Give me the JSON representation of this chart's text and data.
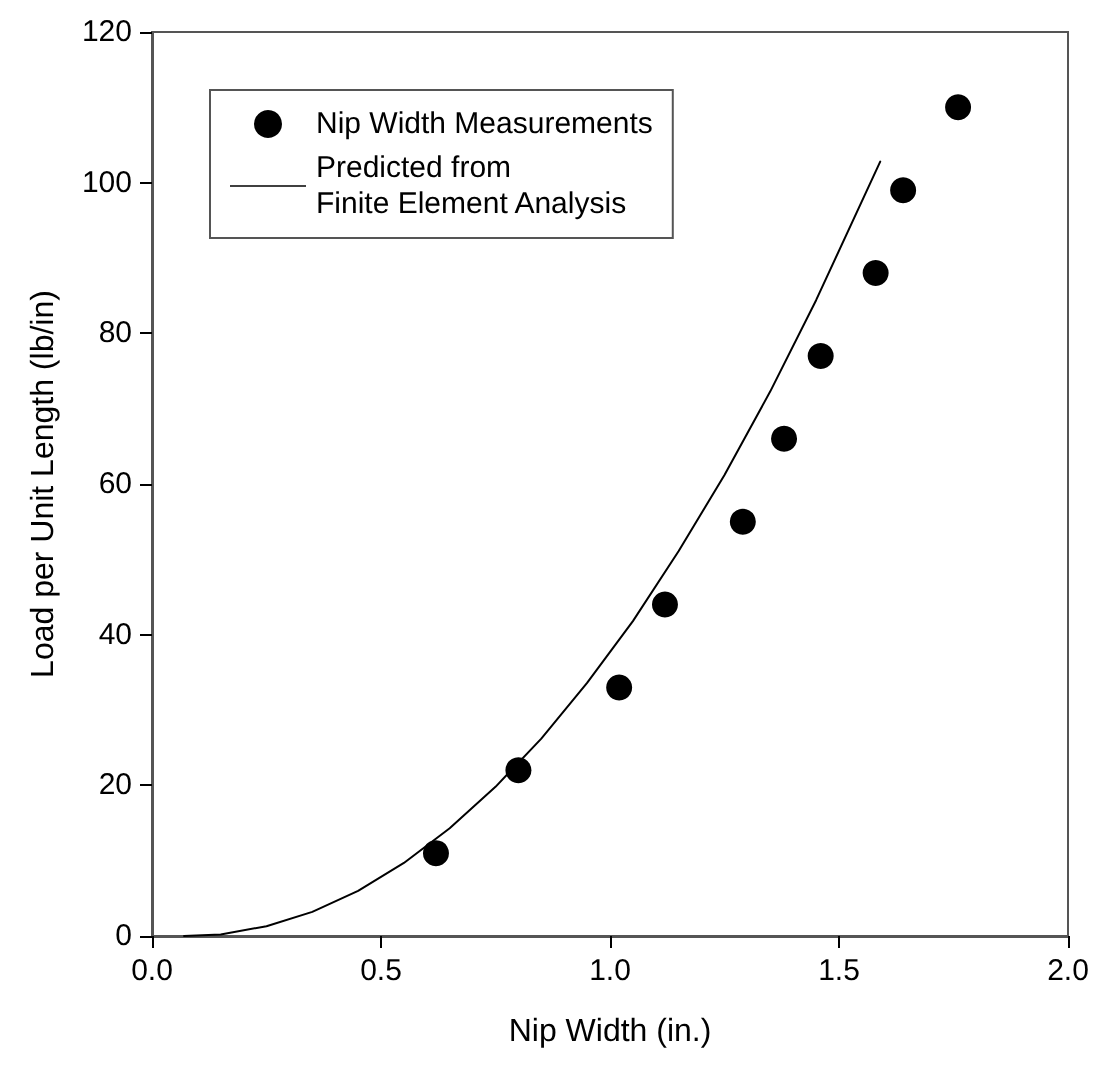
{
  "chart_data": {
    "type": "scatter",
    "xlabel": "Nip Width (in.)",
    "ylabel": "Load per Unit Length (lb/in)",
    "xlim": [
      0,
      2
    ],
    "xticks": [
      {
        "value": 0,
        "label": "0.0"
      },
      {
        "value": 0.5,
        "label": "0.5"
      },
      {
        "value": 1,
        "label": "1.0"
      },
      {
        "value": 1.5,
        "label": "1.5"
      },
      {
        "value": 2,
        "label": "2.0"
      }
    ],
    "ylim": [
      0,
      120
    ],
    "yticks": [
      0,
      20,
      40,
      60,
      80,
      100,
      120
    ],
    "grid": false,
    "legend": "top left",
    "series": [
      {
        "name": "Nip Width Measurements",
        "marker": "circle",
        "color": "#000000",
        "x": [
          0.62,
          0.8,
          1.02,
          1.12,
          1.29,
          1.38,
          1.46,
          1.58,
          1.64,
          1.76
        ],
        "values": [
          11,
          22,
          33,
          44,
          55,
          66,
          77,
          88,
          99,
          110
        ]
      },
      {
        "name": "Predicted from\nFinite Element Analysis",
        "type": "line",
        "marker": "none",
        "line_style": "solid",
        "color": "#000000",
        "x": [
          0.07,
          0.15,
          0.25,
          0.35,
          0.45,
          0.55,
          0.65,
          0.75,
          0.85,
          0.95,
          1.05,
          1.15,
          1.25,
          1.35,
          1.45,
          1.59
        ],
        "values": [
          0,
          0.2,
          1.3,
          3.2,
          6,
          9.7,
          14.3,
          19.8,
          26.2,
          33.6,
          41.8,
          51.1,
          61.2,
          72.3,
          84.4,
          102.8
        ]
      }
    ]
  }
}
